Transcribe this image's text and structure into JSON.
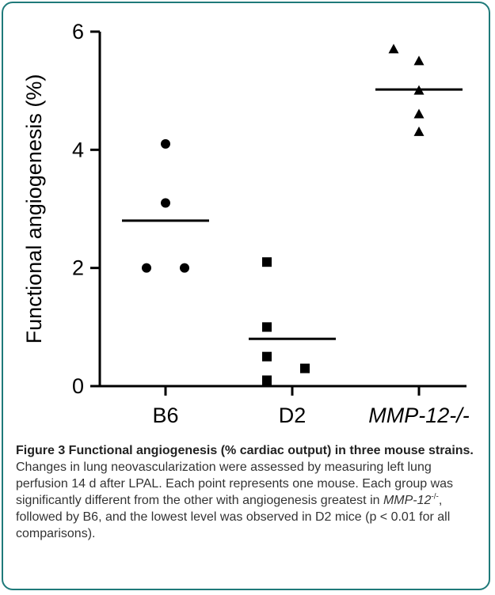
{
  "chart_data": {
    "type": "scatter",
    "categories": [
      "B6",
      "D2",
      "MMP-12-/-"
    ],
    "category_italic": [
      false,
      false,
      true
    ],
    "ylabel": "Functional angiogenesis (%)",
    "xlabel": "",
    "ylim": [
      0,
      6
    ],
    "yticks": [
      0,
      2,
      4,
      6
    ],
    "grid": false,
    "series": [
      {
        "category": "B6",
        "marker": "circle",
        "points": [
          {
            "dx": 0,
            "y": 4.1
          },
          {
            "dx": 0,
            "y": 3.1
          },
          {
            "dx": -0.15,
            "y": 2.0
          },
          {
            "dx": 0.15,
            "y": 2.0
          }
        ],
        "mean": 2.8
      },
      {
        "category": "D2",
        "marker": "square",
        "points": [
          {
            "dx": -0.2,
            "y": 2.1
          },
          {
            "dx": -0.2,
            "y": 1.0
          },
          {
            "dx": -0.2,
            "y": 0.5
          },
          {
            "dx": 0.1,
            "y": 0.3
          },
          {
            "dx": -0.2,
            "y": 0.1
          }
        ],
        "mean": 0.8
      },
      {
        "category": "MMP-12-/-",
        "marker": "triangle",
        "points": [
          {
            "dx": -0.2,
            "y": 5.7
          },
          {
            "dx": 0,
            "y": 5.5
          },
          {
            "dx": 0,
            "y": 5.0
          },
          {
            "dx": 0,
            "y": 4.6
          },
          {
            "dx": 0,
            "y": 4.3
          }
        ],
        "mean": 5.02
      }
    ]
  },
  "caption": {
    "title": "Figure 3 Functional angiogenesis (% cardiac output) in three mouse strains.",
    "body_1": " Changes in lung neovascularization were assessed by measuring left lung perfusion 14 d after LPAL. Each point represents one mouse. Each group was significantly different from the other with angiogenesis greatest in ",
    "italic_term": "MMP-12",
    "superscript": "-/-",
    "body_2": ", followed by B6, and the lowest level was observed in D2 mice (p < 0.01 for all comparisons)."
  },
  "colors": {
    "frame": "#1f7a7a",
    "marks": "#000000",
    "caption_text": "#333333"
  }
}
